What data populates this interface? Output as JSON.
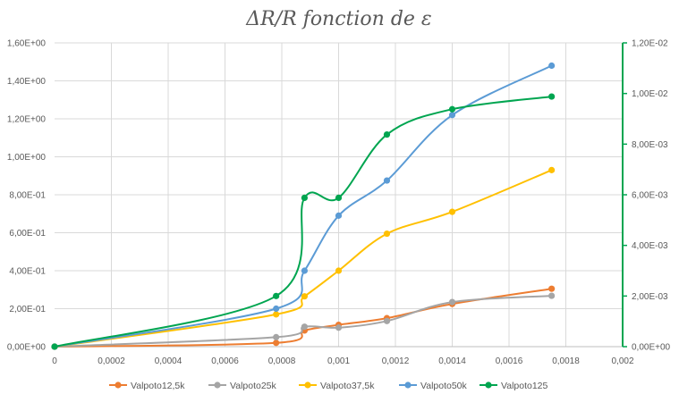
{
  "chart_data": {
    "type": "scatter",
    "title": "ΔR/R  fonction de ε",
    "xlabel": "",
    "ylabel": "",
    "y2label": "",
    "xlim": [
      0,
      0.002
    ],
    "ylim": [
      0,
      1.6
    ],
    "y2lim": [
      0,
      0.012
    ],
    "x_ticks": [
      "0",
      "0,0002",
      "0,0004",
      "0,0006",
      "0,0008",
      "0,001",
      "0,0012",
      "0,0014",
      "0,0016",
      "0,0018",
      "0,002"
    ],
    "y_ticks": [
      "0,00E+00",
      "2,00E-01",
      "4,00E-01",
      "6,00E-01",
      "8,00E-01",
      "1,00E+00",
      "1,20E+00",
      "1,40E+00",
      "1,60E+00"
    ],
    "y2_ticks": [
      "0,00E+00",
      "2,00E-03",
      "4,00E-03",
      "6,00E-03",
      "8,00E-03",
      "1,00E-02",
      "1,20E-02"
    ],
    "grid": true,
    "legend_position": "bottom",
    "series": [
      {
        "name": "Valpoto12,5k",
        "color": "#ED7D31",
        "axis": "left",
        "x": [
          0,
          0.00078,
          0.00088,
          0.001,
          0.00117,
          0.0014,
          0.00175
        ],
        "y": [
          0,
          0.02,
          0.085,
          0.115,
          0.15,
          0.225,
          0.305
        ]
      },
      {
        "name": "Valpoto25k",
        "color": "#A5A5A5",
        "axis": "left",
        "x": [
          0,
          0.00078,
          0.00088,
          0.001,
          0.00117,
          0.0014,
          0.00175
        ],
        "y": [
          0,
          0.05,
          0.105,
          0.1,
          0.135,
          0.235,
          0.268
        ]
      },
      {
        "name": "Valpoto37,5k",
        "color": "#FFC000",
        "axis": "left",
        "x": [
          0,
          0.00078,
          0.00088,
          0.001,
          0.00117,
          0.0014,
          0.00175
        ],
        "y": [
          0,
          0.17,
          0.265,
          0.4,
          0.595,
          0.71,
          0.93
        ]
      },
      {
        "name": "Valpoto50k",
        "color": "#5B9BD5",
        "axis": "left",
        "x": [
          0,
          0.00078,
          0.00088,
          0.001,
          0.00117,
          0.0014,
          0.00175
        ],
        "y": [
          0,
          0.2,
          0.4,
          0.69,
          0.875,
          1.22,
          1.48
        ]
      },
      {
        "name": "Valpoto125",
        "color": "#00A550",
        "axis": "right",
        "x": [
          0,
          0.00078,
          0.00088,
          0.001,
          0.00117,
          0.0014,
          0.00175
        ],
        "y": [
          0,
          0.002,
          0.00588,
          0.00588,
          0.00838,
          0.00938,
          0.00988
        ]
      }
    ]
  }
}
